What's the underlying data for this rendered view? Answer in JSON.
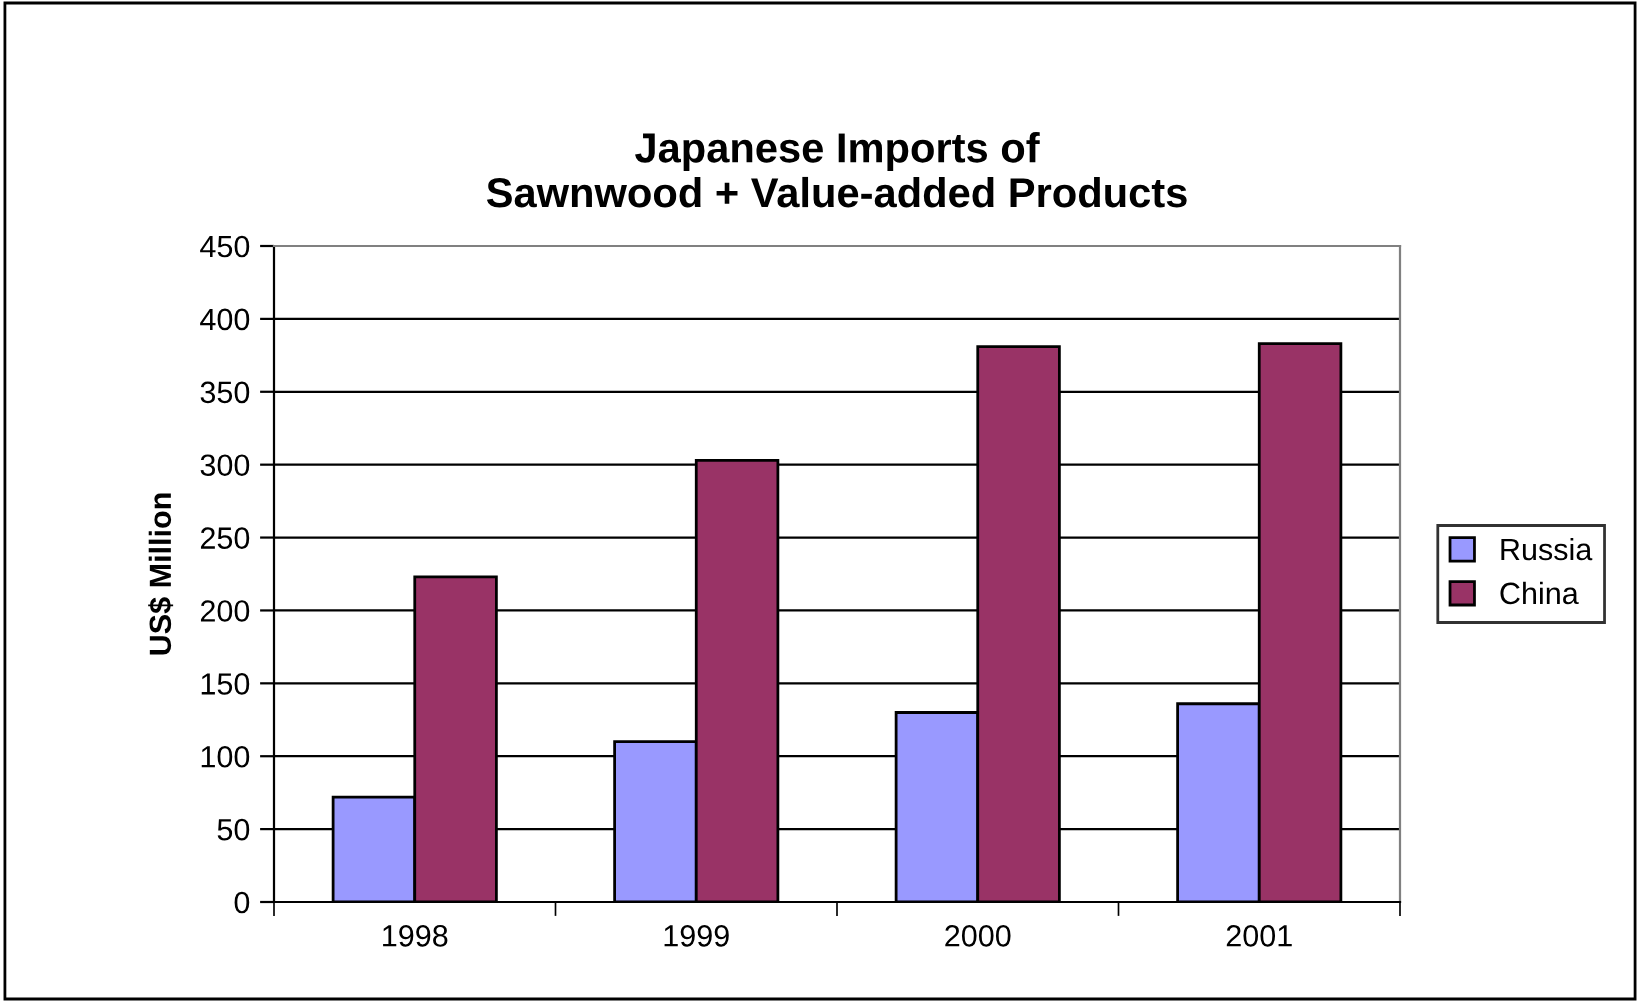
{
  "chart_data": {
    "type": "bar",
    "title": "Japanese Imports of\nSawnwood + Value-added Products",
    "ylabel": "US$ Million",
    "categories": [
      "1998",
      "1999",
      "2000",
      "2001"
    ],
    "series": [
      {
        "name": "Russia",
        "color": "#9999ff",
        "values": [
          72,
          110,
          130,
          136
        ]
      },
      {
        "name": "China",
        "color": "#993366",
        "values": [
          223,
          303,
          381,
          383
        ]
      }
    ],
    "ylim": [
      0,
      450
    ],
    "yticks": [
      0,
      50,
      100,
      150,
      200,
      250,
      300,
      350,
      400,
      450
    ],
    "grid": "y",
    "legend": "right"
  }
}
